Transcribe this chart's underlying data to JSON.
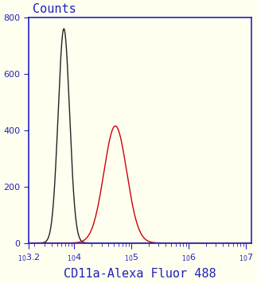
{
  "title": "Counts",
  "ylabel": "",
  "xlabel": "CD11a-Alexa Fluor 488",
  "xlim_log": [
    3.2,
    7.1
  ],
  "ylim": [
    0,
    800
  ],
  "yticks": [
    0,
    200,
    400,
    600,
    800
  ],
  "xtick_positions": [
    3.2,
    4,
    5,
    6,
    7
  ],
  "xtick_labels": [
    "$_{10}3.2$",
    "$_{10}4$",
    "$_{10}5$",
    "$_{10}6$",
    "$_{10}7$"
  ],
  "black_peak_log": 3.82,
  "black_peak_height": 760,
  "black_sigma_log": 0.1,
  "red_peak_log": 4.72,
  "red_peak_height": 415,
  "red_peak2_log": 4.68,
  "red_peak2_height": 380,
  "red_sigma_log": 0.2,
  "spine_color": "#2222bb",
  "tick_color": "#2222bb",
  "label_color": "#2222bb",
  "black_line_color": "#222222",
  "red_line_color": "#cc0000",
  "background_color": "#fffff0",
  "ylabel_fontsize": 11,
  "xlabel_fontsize": 11,
  "tick_fontsize": 8,
  "title_fontsize": 11
}
